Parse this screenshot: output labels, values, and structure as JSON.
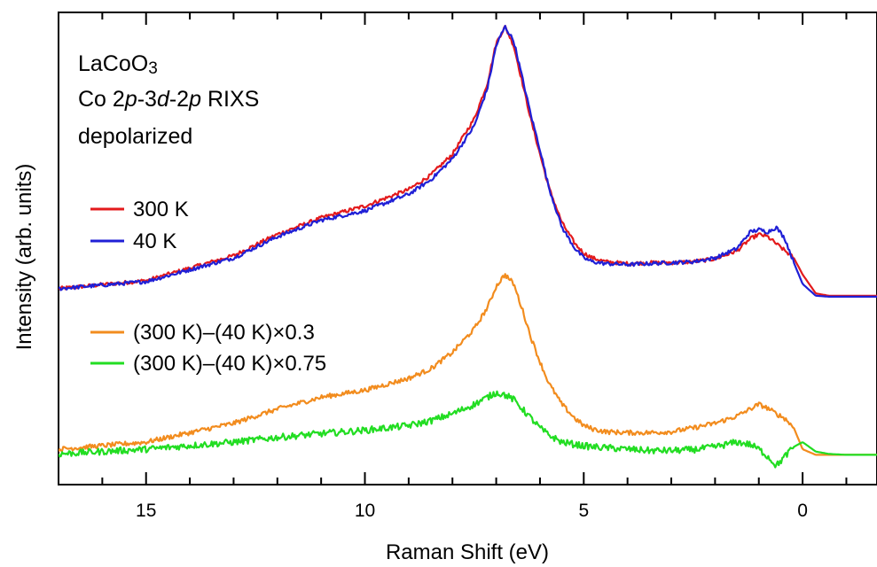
{
  "chart_data": {
    "type": "line",
    "x_axis": {
      "label": "Raman Shift (eV)",
      "lim": [
        17,
        -1.7
      ],
      "ticks": [
        15,
        10,
        5,
        0
      ],
      "tick_labels": [
        "15",
        "10",
        "5",
        "0"
      ],
      "reversed": true
    },
    "y_axis": {
      "label": "Intensity (arb. units)",
      "lim": [
        0,
        1
      ],
      "tick_labels": []
    },
    "annotation": {
      "line1": "LaCoO",
      "line1_sub": "3",
      "line2_parts": [
        "Co 2",
        "p",
        "-3",
        "d",
        "-2",
        "p",
        " RIXS"
      ],
      "line3": "depolarized"
    },
    "grid": false,
    "legend_position": "left",
    "series": [
      {
        "name": "300 K",
        "color": "#e31a1c",
        "x": [
          17,
          15,
          13,
          12,
          11,
          10,
          9,
          8.5,
          8,
          7.5,
          7.2,
          7.0,
          6.8,
          6.6,
          6.4,
          6.2,
          6.0,
          5.8,
          5.5,
          5.2,
          5.0,
          4.8,
          4.5,
          4.0,
          3.5,
          3.0,
          2.5,
          2.0,
          1.5,
          1.2,
          1.0,
          0.8,
          0.6,
          0.4,
          0.2,
          0.0,
          -0.3,
          -0.6,
          -1.0,
          -1.7
        ],
        "y": [
          0.415,
          0.432,
          0.485,
          0.53,
          0.565,
          0.59,
          0.625,
          0.655,
          0.7,
          0.775,
          0.85,
          0.935,
          0.97,
          0.93,
          0.85,
          0.77,
          0.7,
          0.63,
          0.555,
          0.51,
          0.49,
          0.48,
          0.472,
          0.468,
          0.47,
          0.47,
          0.472,
          0.478,
          0.495,
          0.52,
          0.53,
          0.525,
          0.51,
          0.495,
          0.48,
          0.445,
          0.405,
          0.4,
          0.4,
          0.4
        ]
      },
      {
        "name": "40 K",
        "color": "#1f1fd6",
        "x": [
          17,
          15,
          13,
          12,
          11,
          10,
          9,
          8.5,
          8,
          7.5,
          7.2,
          7.0,
          6.8,
          6.6,
          6.4,
          6.2,
          6.0,
          5.8,
          5.5,
          5.2,
          5.0,
          4.8,
          4.5,
          4.0,
          3.5,
          3.0,
          2.5,
          2.0,
          1.5,
          1.2,
          1.0,
          0.8,
          0.6,
          0.4,
          0.2,
          0.0,
          -0.3,
          -0.6,
          -1.0,
          -1.7
        ],
        "y": [
          0.415,
          0.43,
          0.48,
          0.525,
          0.56,
          0.58,
          0.615,
          0.645,
          0.69,
          0.76,
          0.84,
          0.93,
          0.97,
          0.94,
          0.86,
          0.78,
          0.71,
          0.63,
          0.545,
          0.5,
          0.48,
          0.472,
          0.468,
          0.466,
          0.468,
          0.47,
          0.472,
          0.48,
          0.5,
          0.535,
          0.54,
          0.535,
          0.545,
          0.52,
          0.47,
          0.425,
          0.4,
          0.398,
          0.398,
          0.398
        ]
      },
      {
        "name": "(300 K)–(40 K)×0.3",
        "color": "#f28c1e",
        "x": [
          17,
          15,
          13,
          12,
          11,
          10,
          9,
          8.5,
          8,
          7.5,
          7.2,
          7.0,
          6.8,
          6.6,
          6.4,
          6.2,
          6.0,
          5.8,
          5.5,
          5.2,
          5.0,
          4.8,
          4.5,
          4.0,
          3.5,
          3.0,
          2.5,
          2.0,
          1.5,
          1.2,
          1.0,
          0.8,
          0.6,
          0.4,
          0.2,
          0.0,
          -0.3,
          -0.6,
          -1.0,
          -1.7
        ],
        "y": [
          0.075,
          0.09,
          0.13,
          0.16,
          0.185,
          0.2,
          0.225,
          0.245,
          0.28,
          0.33,
          0.375,
          0.42,
          0.445,
          0.425,
          0.37,
          0.31,
          0.26,
          0.215,
          0.17,
          0.14,
          0.125,
          0.118,
          0.112,
          0.11,
          0.11,
          0.112,
          0.12,
          0.13,
          0.145,
          0.16,
          0.17,
          0.162,
          0.15,
          0.14,
          0.12,
          0.075,
          0.063,
          0.063,
          0.063,
          0.063
        ]
      },
      {
        "name": "(300 K)–(40 K)×0.75",
        "color": "#22dd22",
        "x": [
          17,
          15,
          13,
          12,
          11,
          10,
          9,
          8.5,
          8,
          7.5,
          7.2,
          7.0,
          6.8,
          6.6,
          6.4,
          6.2,
          6.0,
          5.8,
          5.5,
          5.2,
          5.0,
          4.8,
          4.5,
          4.0,
          3.5,
          3.0,
          2.5,
          2.0,
          1.5,
          1.2,
          1.0,
          0.8,
          0.6,
          0.4,
          0.2,
          0.0,
          -0.3,
          -0.6,
          -1.0,
          -1.7
        ],
        "y": [
          0.065,
          0.075,
          0.09,
          0.1,
          0.108,
          0.115,
          0.125,
          0.135,
          0.15,
          0.17,
          0.185,
          0.195,
          0.19,
          0.18,
          0.16,
          0.14,
          0.12,
          0.105,
          0.09,
          0.085,
          0.082,
          0.08,
          0.078,
          0.075,
          0.072,
          0.072,
          0.074,
          0.08,
          0.09,
          0.085,
          0.075,
          0.06,
          0.04,
          0.06,
          0.08,
          0.09,
          0.07,
          0.065,
          0.063,
          0.063
        ]
      }
    ]
  }
}
